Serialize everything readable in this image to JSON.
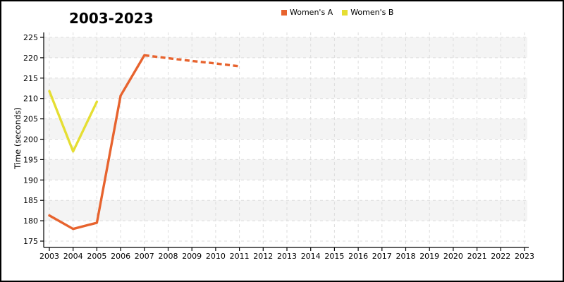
{
  "page": {
    "background": "#ffffff",
    "border_color": "#000000"
  },
  "chart_data": {
    "type": "line",
    "title": "2003-2023",
    "xlabel": "",
    "ylabel": "Time (seconds)",
    "x_ticks": [
      2003,
      2004,
      2005,
      2006,
      2007,
      2008,
      2009,
      2010,
      2011,
      2012,
      2013,
      2014,
      2015,
      2016,
      2017,
      2018,
      2019,
      2020,
      2021,
      2022,
      2023
    ],
    "y_ticks": [
      175,
      180,
      185,
      190,
      195,
      200,
      205,
      210,
      215,
      220,
      225
    ],
    "ylim": [
      173,
      226.5
    ],
    "xlim": [
      2002.7,
      2023.3
    ],
    "grid": {
      "style": "dashed",
      "color": "#dcdcdc",
      "band_color": "#f4f4f4",
      "band_pairs": [
        [
          225,
          220
        ],
        [
          215,
          210
        ],
        [
          205,
          200
        ],
        [
          195,
          190
        ],
        [
          185,
          180
        ]
      ]
    },
    "axis_color": "#000000",
    "legend_position": "top-center",
    "series": [
      {
        "name": "Women's A",
        "color": "#e7632e",
        "x": [
          2003,
          2004,
          2005,
          2006,
          2007,
          2008,
          2009,
          2010,
          2011
        ],
        "values": [
          181.3,
          178.0,
          179.5,
          210.7,
          220.6,
          219.9,
          219.2,
          218.6,
          217.9
        ],
        "line_style": "solid-then-dashed",
        "dashed_from_x": 2007
      },
      {
        "name": "Women's B",
        "color": "#e5de33",
        "x": [
          2003,
          2004,
          2005
        ],
        "values": [
          211.8,
          197.0,
          209.2
        ],
        "line_style": "solid",
        "dashed_from_x": null
      }
    ]
  }
}
